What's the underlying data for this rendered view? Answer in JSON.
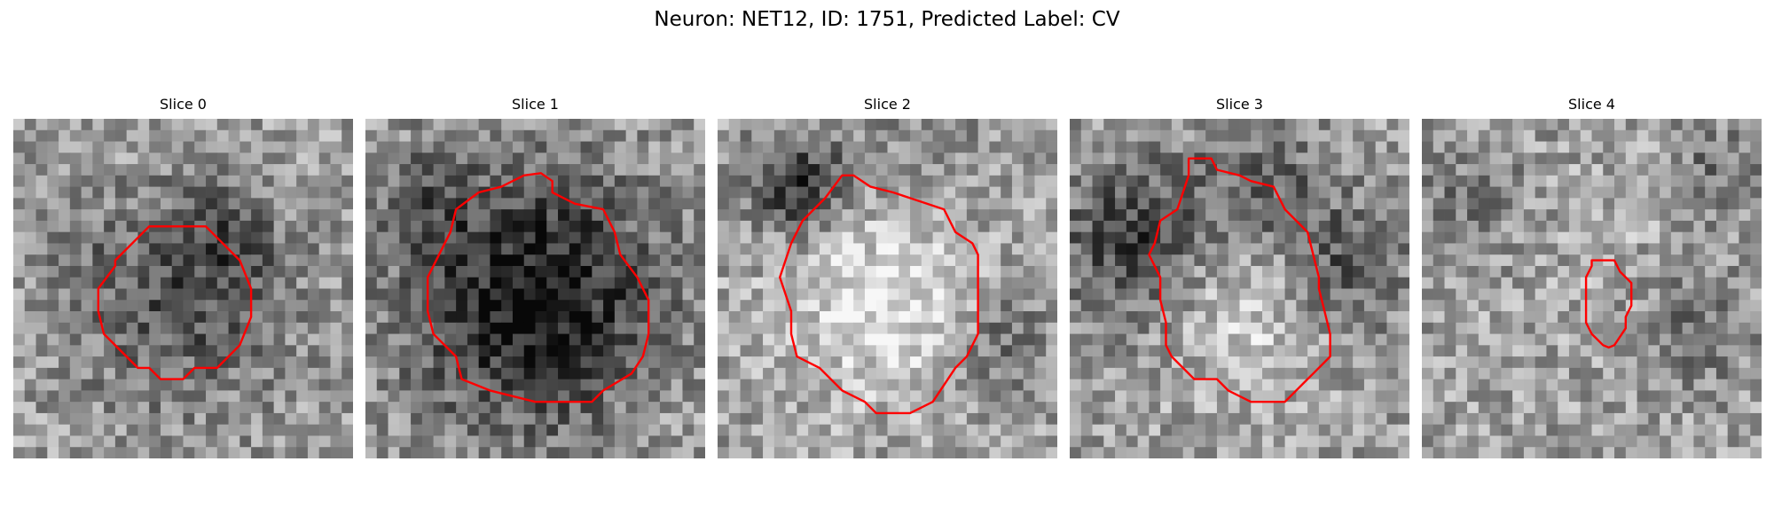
{
  "figure": {
    "title": "Neuron: NET12, ID: 1751, Predicted Label: CV"
  },
  "colors": {
    "contour": "#ff0000",
    "background": "#ffffff"
  },
  "panels": [
    {
      "title": "Slice 0"
    },
    {
      "title": "Slice 1"
    },
    {
      "title": "Slice 2"
    },
    {
      "title": "Slice 3"
    },
    {
      "title": "Slice 4"
    }
  ]
}
